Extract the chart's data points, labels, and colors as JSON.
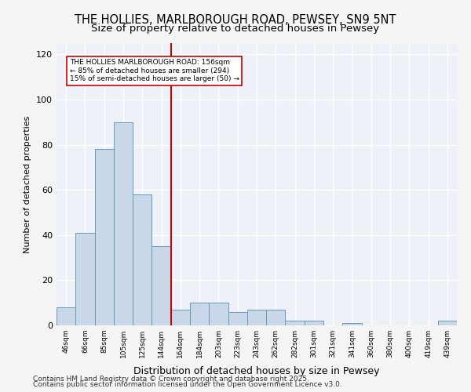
{
  "title_line1": "THE HOLLIES, MARLBOROUGH ROAD, PEWSEY, SN9 5NT",
  "title_line2": "Size of property relative to detached houses in Pewsey",
  "xlabel": "Distribution of detached houses by size in Pewsey",
  "ylabel": "Number of detached properties",
  "categories": [
    "46sqm",
    "66sqm",
    "85sqm",
    "105sqm",
    "125sqm",
    "144sqm",
    "164sqm",
    "184sqm",
    "203sqm",
    "223sqm",
    "243sqm",
    "262sqm",
    "282sqm",
    "301sqm",
    "321sqm",
    "341sqm",
    "360sqm",
    "380sqm",
    "400sqm",
    "419sqm",
    "439sqm"
  ],
  "values": [
    8,
    41,
    78,
    90,
    58,
    35,
    7,
    10,
    10,
    6,
    7,
    7,
    2,
    2,
    0,
    1,
    0,
    0,
    0,
    0,
    2
  ],
  "bar_color": "#c8d8e8",
  "bar_edge_color": "#6899bb",
  "background_color": "#eef2f8",
  "grid_color": "#ffffff",
  "ref_line_x": 5.5,
  "ref_line_label": "THE HOLLIES MARLBOROUGH ROAD: 156sqm",
  "ref_line_sub1": "← 85% of detached houses are smaller (294)",
  "ref_line_sub2": "15% of semi-detached houses are larger (50) →",
  "annotation_box_color": "#ffffff",
  "annotation_border_color": "#cc0000",
  "ylim": [
    0,
    125
  ],
  "yticks": [
    0,
    20,
    40,
    60,
    80,
    100,
    120
  ],
  "footer1": "Contains HM Land Registry data © Crown copyright and database right 2025.",
  "footer2": "Contains public sector information licensed under the Open Government Licence v3.0."
}
